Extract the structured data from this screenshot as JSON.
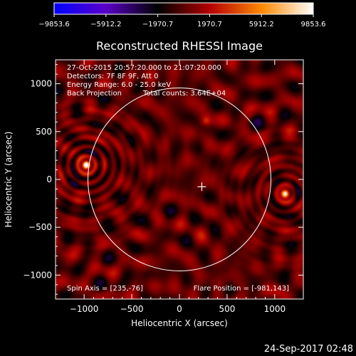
{
  "chart_data": {
    "type": "heatmap",
    "title": "Reconstructed RHESSI Image",
    "xlabel": "Heliocentric X (arcsec)",
    "ylabel": "Heliocentric Y (arcsec)",
    "xlim": [
      -1300,
      1300
    ],
    "ylim": [
      -1250,
      1250
    ],
    "xticks": [
      -1000,
      -500,
      0,
      500,
      1000
    ],
    "yticks": [
      -1000,
      -500,
      0,
      500,
      1000
    ],
    "xtick_labels": [
      "−1000",
      "−500",
      "0",
      "500",
      "1000"
    ],
    "ytick_labels": [
      "−1000",
      "−500",
      "0",
      "500",
      "1000"
    ],
    "colorbar": {
      "min": -9853.6,
      "max": 9853.6,
      "tick_values": [
        -9853.6,
        -5912.2,
        -1970.7,
        1970.7,
        5912.2,
        9853.6
      ],
      "tick_labels": [
        "−9853.6",
        "−5912.2",
        "−1970.7",
        "1970.7",
        "5912.2",
        "9853.6"
      ],
      "colors": [
        "#0000ff",
        "#5a00c8",
        "#000000",
        "#b40000",
        "#ff8800",
        "#ffffff"
      ]
    },
    "annotations": [
      "27-Oct-2015 20:57:20.000 to 21:07:20.000",
      "Detectors: 7F 8F 9F, Att 0",
      "Energy Range: 6.0 - 25.0 keV",
      "Back Projection",
      "Total counts: 3.64E+04"
    ],
    "bottom_left_note": "Spin Axis = [235,-76]",
    "bottom_right_note": "Flare Position = [-981,143]",
    "solar_limb": {
      "center": [
        0,
        0
      ],
      "radius": 960,
      "color": "#ffffff"
    },
    "sources": [
      {
        "x": -975,
        "y": 150,
        "intensity": 9853.6,
        "rings": true
      },
      {
        "x": 1110,
        "y": -150,
        "intensity": 6500,
        "rings": true
      },
      {
        "x": 280,
        "y": 610,
        "intensity": 3200,
        "rings": false
      }
    ],
    "marker": {
      "x": 235,
      "y": -76,
      "symbol": "+"
    },
    "grid": false
  },
  "footer": {
    "timestamp": "24-Sep-2017 02:48"
  }
}
